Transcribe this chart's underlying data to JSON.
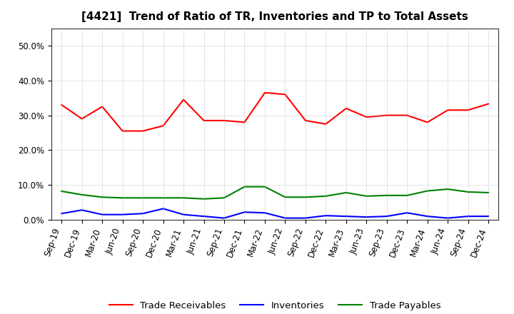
{
  "title": "[4421]  Trend of Ratio of TR, Inventories and TP to Total Assets",
  "labels": [
    "Sep-19",
    "Dec-19",
    "Mar-20",
    "Jun-20",
    "Sep-20",
    "Dec-20",
    "Mar-21",
    "Jun-21",
    "Sep-21",
    "Dec-21",
    "Mar-22",
    "Jun-22",
    "Sep-22",
    "Dec-22",
    "Mar-23",
    "Jun-23",
    "Sep-23",
    "Dec-23",
    "Mar-24",
    "Jun-24",
    "Sep-24",
    "Dec-24"
  ],
  "trade_receivables": [
    0.33,
    0.29,
    0.325,
    0.255,
    0.255,
    0.27,
    0.345,
    0.285,
    0.285,
    0.28,
    0.365,
    0.36,
    0.285,
    0.275,
    0.32,
    0.295,
    0.3,
    0.3,
    0.28,
    0.315,
    0.315,
    0.333
  ],
  "inventories": [
    0.018,
    0.028,
    0.015,
    0.015,
    0.018,
    0.032,
    0.015,
    0.01,
    0.005,
    0.022,
    0.02,
    0.005,
    0.005,
    0.012,
    0.01,
    0.008,
    0.01,
    0.02,
    0.01,
    0.005,
    0.01,
    0.01
  ],
  "trade_payables": [
    0.082,
    0.072,
    0.065,
    0.063,
    0.063,
    0.063,
    0.063,
    0.06,
    0.063,
    0.095,
    0.095,
    0.065,
    0.065,
    0.068,
    0.078,
    0.068,
    0.07,
    0.07,
    0.083,
    0.088,
    0.08,
    0.078
  ],
  "tr_color": "#FF0000",
  "inv_color": "#0000FF",
  "tp_color": "#008000",
  "ylim": [
    0.0,
    0.55
  ],
  "yticks": [
    0.0,
    0.1,
    0.2,
    0.3,
    0.4,
    0.5
  ],
  "legend_labels": [
    "Trade Receivables",
    "Inventories",
    "Trade Payables"
  ],
  "bg_color": "#FFFFFF",
  "grid_color": "#AAAAAA",
  "title_fontsize": 11,
  "tick_fontsize": 8.5,
  "legend_fontsize": 9.5
}
